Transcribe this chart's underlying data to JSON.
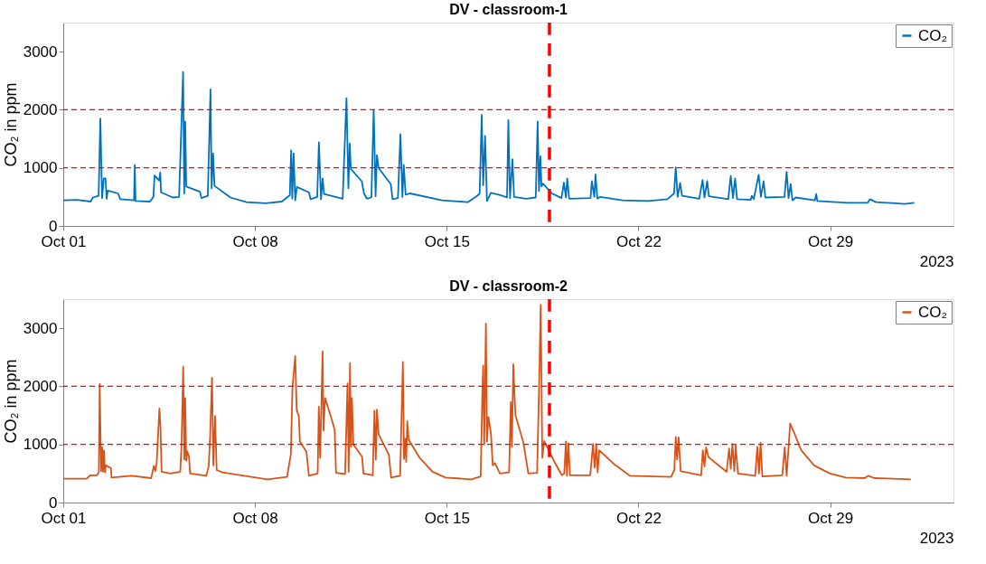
{
  "chart_data": [
    {
      "type": "line",
      "title": "DV - classroom-1",
      "ylabel": "CO₂ in ppm",
      "xlabel": "2023",
      "legend": "top right",
      "grid": false,
      "line_style": "solid",
      "marker": "none",
      "xlim": [
        "2023-10-01T00:00",
        "2023-11-02T12:00"
      ],
      "xticks": [
        {
          "value": "2023-10-01T00:00",
          "label": "Oct 01"
        },
        {
          "value": "2023-10-08T00:00",
          "label": "Oct 08"
        },
        {
          "value": "2023-10-15T00:00",
          "label": "Oct 15"
        },
        {
          "value": "2023-10-22T00:00",
          "label": "Oct 22"
        },
        {
          "value": "2023-10-29T00:00",
          "label": "Oct 29"
        }
      ],
      "ylim": [
        0,
        3500
      ],
      "yticks": [
        0,
        1000,
        2000,
        3000
      ],
      "ref_lines": [
        {
          "axis": "y",
          "value": 1000,
          "color": "#ff0000",
          "line_style": "dashed"
        },
        {
          "axis": "y",
          "value": 2000,
          "color": "#ff0000",
          "line_style": "dashed"
        },
        {
          "axis": "x",
          "value": "2023-10-18T18:00",
          "color": "#ff0000",
          "line_style": "dashed"
        }
      ],
      "series": [
        {
          "name": "CO₂",
          "color": "#0072bd",
          "x": [
            "2023-10-01T00:00",
            "2023-10-01T12:00",
            "2023-10-02T00:00",
            "2023-10-02T02:00",
            "2023-10-02T07:00",
            "2023-10-02T08:30",
            "2023-10-02T10:00",
            "2023-10-02T11:30",
            "2023-10-02T13:00",
            "2023-10-02T14:00",
            "2023-10-02T15:00",
            "2023-10-03T00:00",
            "2023-10-03T02:00",
            "2023-10-03T14:00",
            "2023-10-03T14:40",
            "2023-10-03T15:20",
            "2023-10-04T04:00",
            "2023-10-04T07:00",
            "2023-10-04T08:00",
            "2023-10-04T12:00",
            "2023-10-04T13:00",
            "2023-10-04T13:40",
            "2023-10-05T00:00",
            "2023-10-05T05:30",
            "2023-10-05T09:00",
            "2023-10-05T10:00",
            "2023-10-05T10:50",
            "2023-10-05T11:45",
            "2023-10-05T23:45",
            "2023-10-06T01:00",
            "2023-10-06T06:40",
            "2023-10-06T09:00",
            "2023-10-06T10:00",
            "2023-10-06T11:15",
            "2023-10-06T12:30",
            "2023-10-07T02:30",
            "2023-10-07T16:30",
            "2023-10-08T09:20",
            "2023-10-08T23:30",
            "2023-10-09T06:30",
            "2023-10-09T07:40",
            "2023-10-09T08:40",
            "2023-10-09T09:50",
            "2023-10-09T11:15",
            "2023-10-09T12:40",
            "2023-10-09T23:15",
            "2023-10-10T00:45",
            "2023-10-10T06:30",
            "2023-10-10T08:00",
            "2023-10-10T09:50",
            "2023-10-10T11:15",
            "2023-10-10T12:30",
            "2023-10-11T04:50",
            "2023-10-11T08:10",
            "2023-10-11T09:50",
            "2023-10-11T11:00",
            "2023-10-11T12:00",
            "2023-10-11T21:35",
            "2023-10-11T23:30",
            "2023-10-12T02:00",
            "2023-10-12T06:00",
            "2023-10-12T08:00",
            "2023-10-12T09:40",
            "2023-10-12T10:50",
            "2023-10-12T12:15",
            "2023-10-12T23:00",
            "2023-10-13T00:30",
            "2023-10-13T05:15",
            "2023-10-13T07:25",
            "2023-10-13T09:10",
            "2023-10-13T10:20",
            "2023-10-13T12:00",
            "2023-10-13T15:50",
            "2023-10-14T19:55",
            "2023-10-15T18:30",
            "2023-10-16T02:50",
            "2023-10-16T04:50",
            "2023-10-16T06:40",
            "2023-10-16T07:55",
            "2023-10-16T09:35",
            "2023-10-16T11:15",
            "2023-10-16T14:40",
            "2023-10-16T23:00",
            "2023-10-17T04:50",
            "2023-10-17T06:00",
            "2023-10-17T07:25",
            "2023-10-17T09:35",
            "2023-10-17T11:00",
            "2023-10-17T21:35",
            "2023-10-18T06:00",
            "2023-10-18T07:40",
            "2023-10-18T08:50",
            "2023-10-18T10:05",
            "2023-10-18T11:00",
            "2023-10-18T12:15",
            "2023-10-18T20:10",
            "2023-10-19T04:35",
            "2023-10-19T06:40",
            "2023-10-19T08:25",
            "2023-10-19T09:35",
            "2023-10-19T11:15",
            "2023-10-20T06:00",
            "2023-10-20T07:10",
            "2023-10-20T09:20",
            "2023-10-20T10:20",
            "2023-10-20T12:00",
            "2023-10-20T14:25",
            "2023-10-21T10:05",
            "2023-10-22T08:40",
            "2023-10-23T01:25",
            "2023-10-23T07:10",
            "2023-10-23T08:40",
            "2023-10-23T10:20",
            "2023-10-23T12:30",
            "2023-10-23T14:10",
            "2023-10-24T05:15",
            "2023-10-24T08:10",
            "2023-10-24T09:50",
            "2023-10-24T12:15",
            "2023-10-24T13:40",
            "2023-10-25T06:40",
            "2023-10-25T08:50",
            "2023-10-25T10:50",
            "2023-10-25T12:40",
            "2023-10-25T14:25",
            "2023-10-26T02:25",
            "2023-10-26T03:20",
            "2023-10-26T05:00",
            "2023-10-26T09:20",
            "2023-10-26T11:15",
            "2023-10-26T13:40",
            "2023-10-26T15:10",
            "2023-10-27T07:55",
            "2023-10-27T09:50",
            "2023-10-27T11:30",
            "2023-10-27T13:25",
            "2023-10-27T14:50",
            "2023-10-27T17:45",
            "2023-10-28T10:35",
            "2023-10-28T11:45",
            "2023-10-28T12:40",
            "2023-10-29T15:10",
            "2023-10-30T08:50",
            "2023-10-30T10:50",
            "2023-10-30T16:05",
            "2023-10-31T08:50",
            "2023-10-31T17:15",
            "2023-11-01T01:40"
          ],
          "values": [
            440,
            450,
            420,
            490,
            520,
            1850,
            480,
            820,
            820,
            470,
            610,
            560,
            460,
            440,
            1050,
            430,
            420,
            500,
            870,
            780,
            920,
            580,
            490,
            500,
            2650,
            560,
            1800,
            680,
            590,
            480,
            520,
            2350,
            650,
            1250,
            690,
            490,
            410,
            390,
            420,
            530,
            1300,
            470,
            1250,
            440,
            670,
            580,
            460,
            500,
            1440,
            460,
            820,
            550,
            470,
            2200,
            650,
            1420,
            980,
            770,
            560,
            470,
            490,
            2000,
            510,
            1220,
            1000,
            720,
            460,
            480,
            1580,
            500,
            1050,
            540,
            560,
            440,
            410,
            520,
            560,
            1910,
            700,
            1550,
            430,
            570,
            530,
            490,
            1820,
            480,
            1150,
            500,
            470,
            490,
            1800,
            600,
            1200,
            680,
            730,
            560,
            480,
            750,
            490,
            820,
            470,
            480,
            770,
            500,
            890,
            470,
            500,
            440,
            430,
            460,
            560,
            1010,
            500,
            740,
            520,
            470,
            790,
            490,
            770,
            510,
            460,
            860,
            480,
            820,
            460,
            450,
            520,
            460,
            880,
            500,
            770,
            490,
            500,
            930,
            480,
            720,
            440,
            490,
            440,
            550,
            430,
            400,
            400,
            460,
            410,
            390,
            380,
            400
          ]
        }
      ]
    },
    {
      "type": "line",
      "title": "DV - classroom-2",
      "ylabel": "CO₂ in ppm",
      "xlabel": "2023",
      "legend": "top right",
      "grid": false,
      "line_style": "solid",
      "marker": "none",
      "xlim": [
        "2023-10-01T00:00",
        "2023-11-02T12:00"
      ],
      "xticks": [
        {
          "value": "2023-10-01T00:00",
          "label": "Oct 01"
        },
        {
          "value": "2023-10-08T00:00",
          "label": "Oct 08"
        },
        {
          "value": "2023-10-15T00:00",
          "label": "Oct 15"
        },
        {
          "value": "2023-10-22T00:00",
          "label": "Oct 22"
        },
        {
          "value": "2023-10-29T00:00",
          "label": "Oct 29"
        }
      ],
      "ylim": [
        0,
        3500
      ],
      "yticks": [
        0,
        1000,
        2000,
        3000
      ],
      "ref_lines": [
        {
          "axis": "y",
          "value": 1000,
          "color": "#ff0000",
          "line_style": "dashed"
        },
        {
          "axis": "y",
          "value": 2000,
          "color": "#ff0000",
          "line_style": "dashed"
        },
        {
          "axis": "x",
          "value": "2023-10-18T18:00",
          "color": "#ff0000",
          "line_style": "dashed"
        }
      ],
      "series": [
        {
          "name": "CO₂",
          "color": "#d95319",
          "x": [
            "2023-10-01T00:00",
            "2023-10-01T20:25",
            "2023-10-01T23:45",
            "2023-10-02T05:30",
            "2023-10-02T07:10",
            "2023-10-02T07:55",
            "2023-10-02T09:10",
            "2023-10-02T10:05",
            "2023-10-02T10:50",
            "2023-10-02T11:45",
            "2023-10-02T12:30",
            "2023-10-02T13:25",
            "2023-10-02T17:45",
            "2023-10-02T18:15",
            "2023-10-03T12:00",
            "2023-10-04T05:00",
            "2023-10-04T07:25",
            "2023-10-04T08:40",
            "2023-10-04T09:50",
            "2023-10-04T12:15",
            "2023-10-04T13:10",
            "2023-10-04T14:10",
            "2023-10-04T22:05",
            "2023-10-05T06:30",
            "2023-10-05T07:40",
            "2023-10-05T09:05",
            "2023-10-05T10:05",
            "2023-10-05T10:50",
            "2023-10-05T11:45",
            "2023-10-05T12:40",
            "2023-10-05T14:10",
            "2023-10-05T15:10",
            "2023-10-06T05:15",
            "2023-10-06T07:25",
            "2023-10-06T08:40",
            "2023-10-06T10:20",
            "2023-10-06T11:30",
            "2023-10-06T13:00",
            "2023-10-06T14:25",
            "2023-10-06T19:25",
            "2023-10-08T11:00",
            "2023-10-09T04:05",
            "2023-10-09T07:25",
            "2023-10-09T08:50",
            "2023-10-09T11:15",
            "2023-10-09T12:30",
            "2023-10-09T14:25",
            "2023-10-09T15:20",
            "2023-10-09T21:05",
            "2023-10-09T23:15",
            "2023-10-10T06:55",
            "2023-10-10T07:55",
            "2023-10-10T09:05",
            "2023-10-10T11:15",
            "2023-10-10T12:00",
            "2023-10-10T13:25",
            "2023-10-10T19:40",
            "2023-10-10T21:50",
            "2023-10-10T23:00",
            "2023-10-11T06:55",
            "2023-10-11T09:05",
            "2023-10-11T10:05",
            "2023-10-11T11:15",
            "2023-10-11T12:00",
            "2023-10-11T12:55",
            "2023-10-11T14:10",
            "2023-10-11T21:50",
            "2023-10-11T23:00",
            "2023-10-12T07:10",
            "2023-10-12T08:40",
            "2023-10-12T09:50",
            "2023-10-12T10:50",
            "2023-10-12T12:15",
            "2023-10-12T21:20",
            "2023-10-12T23:15",
            "2023-10-13T07:10",
            "2023-10-13T09:35",
            "2023-10-13T10:35",
            "2023-10-13T11:45",
            "2023-10-13T12:30",
            "2023-10-13T13:25",
            "2023-10-13T14:40",
            "2023-10-14T00:15",
            "2023-10-14T11:30",
            "2023-10-14T23:00",
            "2023-10-15T21:35",
            "2023-10-16T05:45",
            "2023-10-16T07:10",
            "2023-10-16T07:55",
            "2023-10-16T08:50",
            "2023-10-16T10:20",
            "2023-10-16T11:15",
            "2023-10-16T12:30",
            "2023-10-16T14:40",
            "2023-10-16T16:20",
            "2023-10-16T18:15",
            "2023-10-16T22:35",
            "2023-10-17T06:40",
            "2023-10-17T08:10",
            "2023-10-17T09:05",
            "2023-10-17T10:20",
            "2023-10-17T11:30",
            "2023-10-17T12:15",
            "2023-10-17T19:10",
            "2023-10-17T23:30",
            "2023-10-18T07:10",
            "2023-10-18T08:50",
            "2023-10-18T10:20",
            "2023-10-18T11:45",
            "2023-10-18T13:25",
            "2023-10-18T21:50",
            "2023-10-19T04:50",
            "2023-10-19T07:00",
            "2023-10-19T08:25",
            "2023-10-19T09:20",
            "2023-10-19T10:35",
            "2023-10-19T12:00",
            "2023-10-20T05:45",
            "2023-10-20T08:10",
            "2023-10-20T09:35",
            "2023-10-20T11:00",
            "2023-10-20T12:15",
            "2023-10-20T13:40",
            "2023-10-21T02:40",
            "2023-10-21T16:35",
            "2023-10-23T04:35",
            "2023-10-23T07:25",
            "2023-10-23T08:40",
            "2023-10-23T09:50",
            "2023-10-23T11:15",
            "2023-10-23T12:55",
            "2023-10-24T06:55",
            "2023-10-24T08:25",
            "2023-10-24T09:50",
            "2023-10-24T11:15",
            "2023-10-24T13:25",
            "2023-10-25T05:15",
            "2023-10-25T07:25",
            "2023-10-25T08:50",
            "2023-10-25T10:20",
            "2023-10-25T12:00",
            "2023-10-25T13:10",
            "2023-10-25T15:10",
            "2023-10-26T06:15",
            "2023-10-26T08:10",
            "2023-10-26T09:35",
            "2023-10-26T11:00",
            "2023-10-26T12:30",
            "2023-10-27T06:00",
            "2023-10-27T08:10",
            "2023-10-27T09:50",
            "2023-10-27T11:30",
            "2023-10-27T12:55",
            "2023-10-27T15:35",
            "2023-10-27T22:35",
            "2023-10-28T09:50",
            "2023-10-28T23:45",
            "2023-10-29T13:40",
            "2023-10-30T06:15",
            "2023-10-30T09:10",
            "2023-10-30T14:40",
            "2023-10-31T07:10",
            "2023-10-31T22:35"
          ],
          "values": [
            410,
            410,
            470,
            470,
            520,
            2040,
            540,
            950,
            530,
            900,
            520,
            640,
            590,
            430,
            460,
            420,
            630,
            540,
            680,
            1620,
            1300,
            530,
            500,
            530,
            1000,
            2340,
            740,
            1800,
            720,
            880,
            790,
            500,
            460,
            620,
            1140,
            2150,
            640,
            1490,
            560,
            520,
            400,
            440,
            830,
            1980,
            2520,
            1600,
            1480,
            1050,
            870,
            460,
            500,
            1650,
            770,
            2600,
            1240,
            1800,
            1400,
            1250,
            510,
            490,
            2050,
            530,
            2400,
            960,
            1800,
            1000,
            790,
            500,
            470,
            1580,
            740,
            1600,
            1180,
            820,
            430,
            460,
            2420,
            750,
            1100,
            700,
            1400,
            1080,
            770,
            530,
            430,
            400,
            450,
            1840,
            2360,
            1000,
            3080,
            1050,
            1470,
            1200,
            640,
            680,
            500,
            520,
            1730,
            960,
            2380,
            1800,
            1500,
            1030,
            500,
            510,
            1910,
            3400,
            770,
            1060,
            720,
            470,
            500,
            1050,
            460,
            1020,
            470,
            470,
            1010,
            600,
            1010,
            520,
            900,
            660,
            460,
            440,
            560,
            1130,
            740,
            1120,
            540,
            470,
            900,
            620,
            950,
            780,
            530,
            930,
            580,
            1010,
            540,
            980,
            500,
            460,
            960,
            500,
            1030,
            450,
            470,
            950,
            460,
            950,
            1360,
            1240,
            900,
            640,
            500,
            430,
            420,
            460,
            420,
            410,
            400
          ]
        }
      ]
    }
  ]
}
